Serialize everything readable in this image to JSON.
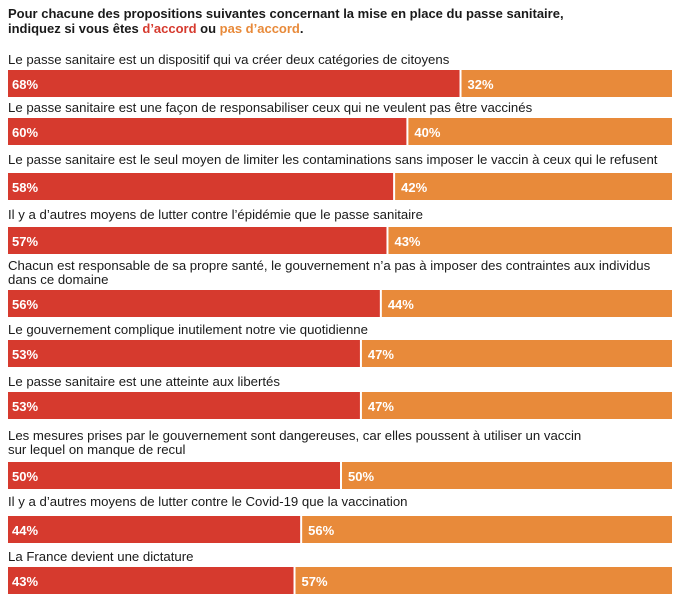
{
  "title": {
    "line1": "Pour chacune des propositions suivantes concernant la mise en place du passe sanitaire,",
    "line2_prefix": "indiquez si vous êtes ",
    "agree_word": "d’accord",
    "connector": " ou ",
    "disagree_word": "pas d’accord",
    "suffix": "."
  },
  "colors": {
    "agree": "#d63a2e",
    "disagree": "#e88a3a"
  },
  "chart_data": {
    "type": "bar",
    "orientation": "horizontal",
    "stacked": true,
    "grid": false,
    "categories": [
      [
        "Le passe sanitaire est un dispositif qui va créer deux catégories de citoyens"
      ],
      [
        "Le passe sanitaire est une façon de responsabiliser ceux qui ne veulent pas être vaccinés"
      ],
      [
        "Le passe sanitaire est le seul moyen de limiter les contaminations sans imposer le vaccin à ceux qui le refusent"
      ],
      [
        "Il y a d’autres moyens de lutter contre l’épidémie que le passe sanitaire"
      ],
      [
        "Chacun est responsable de sa propre santé, le gouvernement n’a pas à imposer des contraintes aux individus",
        "dans ce domaine"
      ],
      [
        "Le gouvernement complique inutilement notre vie quotidienne"
      ],
      [
        "Le passe sanitaire est une atteinte aux libertés"
      ],
      [
        "Les mesures prises par le gouvernement sont dangereuses, car elles poussent à utiliser un vaccin",
        "sur lequel on manque de recul"
      ],
      [
        "Il y a d’autres moyens de lutter contre le Covid-19 que la vaccination"
      ],
      [
        "La France devient une dictature"
      ]
    ],
    "series": [
      {
        "name": "d’accord",
        "values": [
          68,
          60,
          58,
          57,
          56,
          53,
          53,
          50,
          44,
          43
        ]
      },
      {
        "name": "pas d’accord",
        "values": [
          32,
          40,
          42,
          43,
          44,
          47,
          47,
          50,
          56,
          57
        ]
      }
    ],
    "value_suffix": "%"
  }
}
